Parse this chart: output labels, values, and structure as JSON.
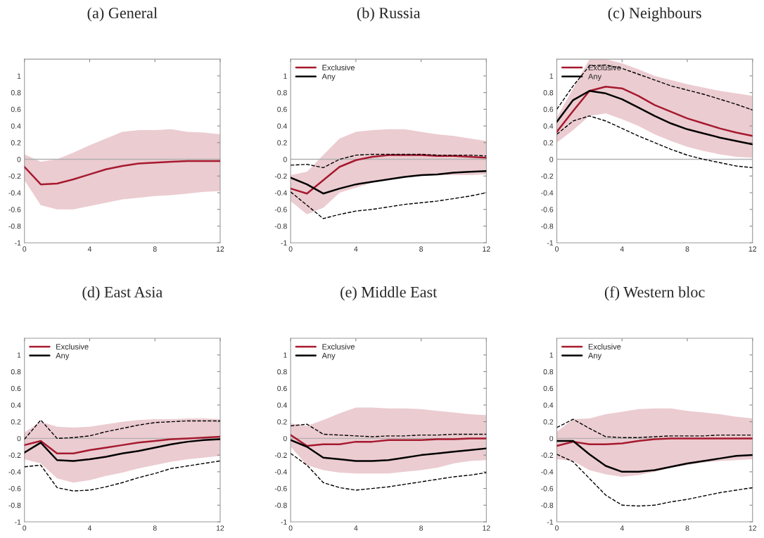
{
  "chart_data": [
    {
      "type": "line",
      "title": "(a) General",
      "x": [
        0,
        1,
        2,
        3,
        4,
        5,
        6,
        7,
        8,
        9,
        10,
        11,
        12
      ],
      "xlim": [
        0,
        12
      ],
      "xticks": [
        0,
        4,
        8,
        12
      ],
      "ylim": [
        -1,
        1.2
      ],
      "yticks": [
        -1,
        -0.8,
        -0.6,
        -0.4,
        -0.2,
        0,
        0.2,
        0.4,
        0.6,
        0.8,
        1
      ],
      "grid": false,
      "legend": false,
      "ref_lines": [
        {
          "axis": "y",
          "value": 0,
          "color": "#b0b0b0"
        }
      ],
      "series": [
        {
          "color": "#a6192e",
          "line_style": "solid",
          "values": [
            -0.09,
            -0.3,
            -0.29,
            -0.24,
            -0.18,
            -0.12,
            -0.08,
            -0.05,
            -0.04,
            -0.03,
            -0.02,
            -0.02,
            -0.02
          ],
          "lower": [
            -0.25,
            -0.55,
            -0.6,
            -0.6,
            -0.56,
            -0.52,
            -0.48,
            -0.46,
            -0.44,
            -0.43,
            -0.41,
            -0.39,
            -0.38
          ],
          "upper": [
            0.06,
            -0.03,
            0.0,
            0.08,
            0.17,
            0.25,
            0.33,
            0.35,
            0.35,
            0.36,
            0.33,
            0.32,
            0.3
          ]
        }
      ]
    },
    {
      "type": "line",
      "title": "(b) Russia",
      "x": [
        0,
        1,
        2,
        3,
        4,
        5,
        6,
        7,
        8,
        9,
        10,
        11,
        12
      ],
      "xlim": [
        0,
        12
      ],
      "xticks": [
        0,
        4,
        8,
        12
      ],
      "ylim": [
        -1,
        1.2
      ],
      "yticks": [
        -1,
        -0.8,
        -0.6,
        -0.4,
        -0.2,
        0,
        0.2,
        0.4,
        0.6,
        0.8,
        1
      ],
      "grid": false,
      "legend": "top left",
      "ref_lines": [
        {
          "axis": "y",
          "value": 0,
          "color": "#b0b0b0"
        }
      ],
      "series": [
        {
          "name": "Exclusive",
          "color": "#a6192e",
          "line_style": "solid",
          "values": [
            -0.35,
            -0.41,
            -0.25,
            -0.09,
            -0.01,
            0.03,
            0.05,
            0.05,
            0.05,
            0.04,
            0.04,
            0.03,
            0.02
          ],
          "lower": [
            -0.5,
            -0.66,
            -0.58,
            -0.4,
            -0.34,
            -0.28,
            -0.24,
            -0.21,
            -0.2,
            -0.19,
            -0.19,
            -0.19,
            -0.18
          ],
          "upper": [
            -0.19,
            -0.15,
            0.05,
            0.25,
            0.33,
            0.35,
            0.36,
            0.36,
            0.33,
            0.3,
            0.28,
            0.25,
            0.22
          ]
        },
        {
          "name": "Any",
          "color": "#000000",
          "line_style": "solid",
          "values": [
            -0.22,
            -0.3,
            -0.41,
            -0.35,
            -0.3,
            -0.27,
            -0.24,
            -0.21,
            -0.19,
            -0.18,
            -0.16,
            -0.15,
            -0.14
          ]
        },
        {
          "color": "#000000",
          "line_style": "dashed",
          "values": [
            -0.07,
            -0.06,
            -0.1,
            0.0,
            0.05,
            0.06,
            0.06,
            0.06,
            0.06,
            0.05,
            0.05,
            0.05,
            0.04
          ]
        },
        {
          "color": "#000000",
          "line_style": "dashed",
          "values": [
            -0.39,
            -0.55,
            -0.71,
            -0.66,
            -0.62,
            -0.6,
            -0.57,
            -0.54,
            -0.52,
            -0.5,
            -0.47,
            -0.44,
            -0.4
          ]
        }
      ]
    },
    {
      "type": "line",
      "title": "(c) Neighbours",
      "x": [
        0,
        1,
        2,
        3,
        4,
        5,
        6,
        7,
        8,
        9,
        10,
        11,
        12
      ],
      "xlim": [
        0,
        12
      ],
      "xticks": [
        0,
        4,
        8,
        12
      ],
      "ylim": [
        -1,
        1.2
      ],
      "yticks": [
        -1,
        -0.8,
        -0.6,
        -0.4,
        -0.2,
        0,
        0.2,
        0.4,
        0.6,
        0.8,
        1
      ],
      "grid": false,
      "legend": "top left",
      "ref_lines": [
        {
          "axis": "y",
          "value": 0,
          "color": "#b0b0b0"
        }
      ],
      "series": [
        {
          "name": "Exclusive",
          "color": "#a6192e",
          "line_style": "solid",
          "values": [
            0.33,
            0.58,
            0.82,
            0.87,
            0.85,
            0.76,
            0.65,
            0.57,
            0.49,
            0.43,
            0.37,
            0.32,
            0.28
          ],
          "lower": [
            0.2,
            0.35,
            0.52,
            0.55,
            0.48,
            0.4,
            0.3,
            0.22,
            0.15,
            0.1,
            0.06,
            0.03,
            0.02
          ],
          "upper": [
            0.5,
            0.85,
            1.2,
            1.2,
            1.15,
            1.08,
            1.0,
            0.95,
            0.9,
            0.86,
            0.82,
            0.79,
            0.76
          ]
        },
        {
          "name": "Any",
          "color": "#000000",
          "line_style": "solid",
          "values": [
            0.45,
            0.71,
            0.82,
            0.79,
            0.72,
            0.62,
            0.52,
            0.43,
            0.36,
            0.31,
            0.26,
            0.22,
            0.18
          ]
        },
        {
          "color": "#000000",
          "line_style": "dashed",
          "values": [
            0.6,
            0.88,
            1.12,
            1.13,
            1.09,
            1.02,
            0.95,
            0.88,
            0.83,
            0.78,
            0.72,
            0.66,
            0.59
          ]
        },
        {
          "color": "#000000",
          "line_style": "dashed",
          "values": [
            0.3,
            0.46,
            0.52,
            0.46,
            0.37,
            0.28,
            0.2,
            0.12,
            0.05,
            0.0,
            -0.04,
            -0.08,
            -0.1
          ]
        }
      ]
    },
    {
      "type": "line",
      "title": "(d) East Asia",
      "x": [
        0,
        1,
        2,
        3,
        4,
        5,
        6,
        7,
        8,
        9,
        10,
        11,
        12
      ],
      "xlim": [
        0,
        12
      ],
      "xticks": [
        0,
        4,
        8,
        12
      ],
      "ylim": [
        -1,
        1.2
      ],
      "yticks": [
        -1,
        -0.8,
        -0.6,
        -0.4,
        -0.2,
        0,
        0.2,
        0.4,
        0.6,
        0.8,
        1
      ],
      "grid": false,
      "legend": "top left",
      "ref_lines": [
        {
          "axis": "y",
          "value": 0,
          "color": "#b0b0b0"
        }
      ],
      "series": [
        {
          "name": "Exclusive",
          "color": "#a6192e",
          "line_style": "solid",
          "values": [
            -0.08,
            -0.03,
            -0.18,
            -0.18,
            -0.14,
            -0.11,
            -0.08,
            -0.05,
            -0.03,
            -0.01,
            0.0,
            0.01,
            0.02
          ],
          "lower": [
            -0.25,
            -0.3,
            -0.48,
            -0.53,
            -0.5,
            -0.45,
            -0.41,
            -0.36,
            -0.32,
            -0.28,
            -0.25,
            -0.23,
            -0.21
          ],
          "upper": [
            0.07,
            0.2,
            0.14,
            0.13,
            0.14,
            0.17,
            0.2,
            0.22,
            0.23,
            0.23,
            0.24,
            0.24,
            0.23
          ]
        },
        {
          "name": "Any",
          "color": "#000000",
          "line_style": "solid",
          "values": [
            -0.17,
            -0.05,
            -0.26,
            -0.27,
            -0.25,
            -0.22,
            -0.18,
            -0.15,
            -0.11,
            -0.07,
            -0.04,
            -0.02,
            -0.01
          ]
        },
        {
          "color": "#000000",
          "line_style": "dashed",
          "values": [
            -0.01,
            0.22,
            0.0,
            0.01,
            0.03,
            0.08,
            0.12,
            0.16,
            0.19,
            0.2,
            0.21,
            0.21,
            0.21
          ]
        },
        {
          "color": "#000000",
          "line_style": "dashed",
          "values": [
            -0.34,
            -0.32,
            -0.59,
            -0.63,
            -0.62,
            -0.58,
            -0.53,
            -0.47,
            -0.42,
            -0.36,
            -0.33,
            -0.3,
            -0.27
          ]
        }
      ]
    },
    {
      "type": "line",
      "title": "(e) Middle East",
      "x": [
        0,
        1,
        2,
        3,
        4,
        5,
        6,
        7,
        8,
        9,
        10,
        11,
        12
      ],
      "xlim": [
        0,
        12
      ],
      "xticks": [
        0,
        4,
        8,
        12
      ],
      "ylim": [
        -1,
        1.2
      ],
      "yticks": [
        -1,
        -0.8,
        -0.6,
        -0.4,
        -0.2,
        0,
        0.2,
        0.4,
        0.6,
        0.8,
        1
      ],
      "grid": false,
      "legend": "top left",
      "ref_lines": [
        {
          "axis": "y",
          "value": 0,
          "color": "#b0b0b0"
        }
      ],
      "series": [
        {
          "name": "Exclusive",
          "color": "#a6192e",
          "line_style": "solid",
          "values": [
            0.04,
            -0.09,
            -0.07,
            -0.07,
            -0.04,
            -0.04,
            -0.02,
            -0.02,
            -0.02,
            -0.01,
            -0.01,
            0.0,
            0.0
          ],
          "lower": [
            -0.1,
            -0.32,
            -0.38,
            -0.41,
            -0.42,
            -0.42,
            -0.42,
            -0.4,
            -0.38,
            -0.35,
            -0.3,
            -0.27,
            -0.26
          ],
          "upper": [
            0.18,
            0.15,
            0.22,
            0.3,
            0.37,
            0.37,
            0.36,
            0.36,
            0.35,
            0.33,
            0.31,
            0.29,
            0.28
          ]
        },
        {
          "name": "Any",
          "color": "#000000",
          "line_style": "solid",
          "values": [
            -0.02,
            -0.1,
            -0.23,
            -0.25,
            -0.27,
            -0.27,
            -0.26,
            -0.23,
            -0.2,
            -0.18,
            -0.16,
            -0.14,
            -0.12
          ]
        },
        {
          "color": "#000000",
          "line_style": "dashed",
          "values": [
            0.15,
            0.17,
            0.05,
            0.04,
            0.03,
            0.02,
            0.03,
            0.03,
            0.04,
            0.04,
            0.05,
            0.05,
            0.05
          ]
        },
        {
          "color": "#000000",
          "line_style": "dashed",
          "values": [
            -0.18,
            -0.32,
            -0.53,
            -0.59,
            -0.62,
            -0.6,
            -0.58,
            -0.55,
            -0.52,
            -0.49,
            -0.46,
            -0.44,
            -0.41
          ]
        }
      ]
    },
    {
      "type": "line",
      "title": "(f) Western bloc",
      "x": [
        0,
        1,
        2,
        3,
        4,
        5,
        6,
        7,
        8,
        9,
        10,
        11,
        12
      ],
      "xlim": [
        0,
        12
      ],
      "xticks": [
        0,
        4,
        8,
        12
      ],
      "ylim": [
        -1,
        1.2
      ],
      "yticks": [
        -1,
        -0.8,
        -0.6,
        -0.4,
        -0.2,
        0,
        0.2,
        0.4,
        0.6,
        0.8,
        1
      ],
      "grid": false,
      "legend": "top left",
      "ref_lines": [
        {
          "axis": "y",
          "value": 0,
          "color": "#b0b0b0"
        }
      ],
      "series": [
        {
          "name": "Exclusive",
          "color": "#a6192e",
          "line_style": "solid",
          "values": [
            -0.09,
            -0.04,
            -0.07,
            -0.07,
            -0.06,
            -0.03,
            -0.01,
            0.0,
            0.0,
            0.0,
            0.0,
            0.0,
            0.0
          ],
          "lower": [
            -0.25,
            -0.27,
            -0.38,
            -0.43,
            -0.46,
            -0.44,
            -0.4,
            -0.35,
            -0.32,
            -0.29,
            -0.27,
            -0.26,
            -0.25
          ],
          "upper": [
            0.08,
            0.23,
            0.24,
            0.29,
            0.32,
            0.35,
            0.36,
            0.36,
            0.33,
            0.31,
            0.29,
            0.26,
            0.24
          ]
        },
        {
          "name": "Any",
          "color": "#000000",
          "line_style": "solid",
          "values": [
            -0.03,
            -0.03,
            -0.19,
            -0.33,
            -0.4,
            -0.4,
            -0.38,
            -0.34,
            -0.3,
            -0.27,
            -0.24,
            -0.21,
            -0.2
          ]
        },
        {
          "color": "#000000",
          "line_style": "dashed",
          "values": [
            0.13,
            0.23,
            0.12,
            0.02,
            0.01,
            0.01,
            0.02,
            0.03,
            0.03,
            0.03,
            0.04,
            0.04,
            0.04
          ]
        },
        {
          "color": "#000000",
          "line_style": "dashed",
          "values": [
            -0.19,
            -0.28,
            -0.48,
            -0.68,
            -0.8,
            -0.81,
            -0.8,
            -0.76,
            -0.73,
            -0.69,
            -0.65,
            -0.62,
            -0.59
          ]
        }
      ]
    }
  ]
}
